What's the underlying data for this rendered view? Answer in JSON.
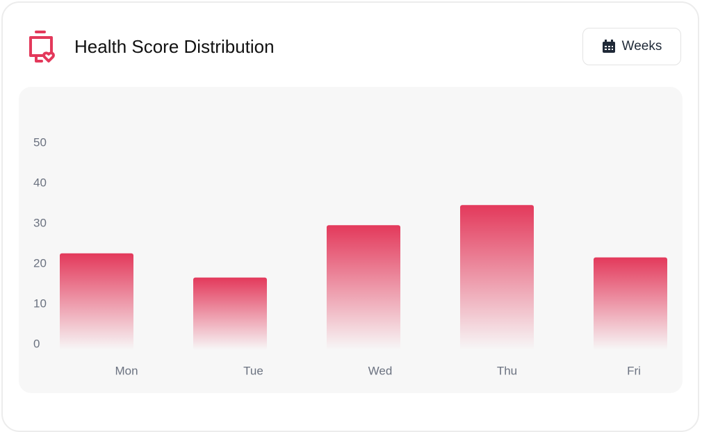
{
  "chart_data": {
    "type": "bar",
    "title": "Health Score Distribution",
    "categories": [
      "Mon",
      "Tue",
      "Wed",
      "Thu",
      "Fri"
    ],
    "values": [
      24,
      18,
      31,
      36,
      23
    ],
    "color": "#e3395b",
    "ylim": [
      0,
      50
    ],
    "yticks": [
      0,
      10,
      20,
      30,
      40,
      50
    ],
    "grid": false
  },
  "controls": {
    "period": "Weeks"
  }
}
